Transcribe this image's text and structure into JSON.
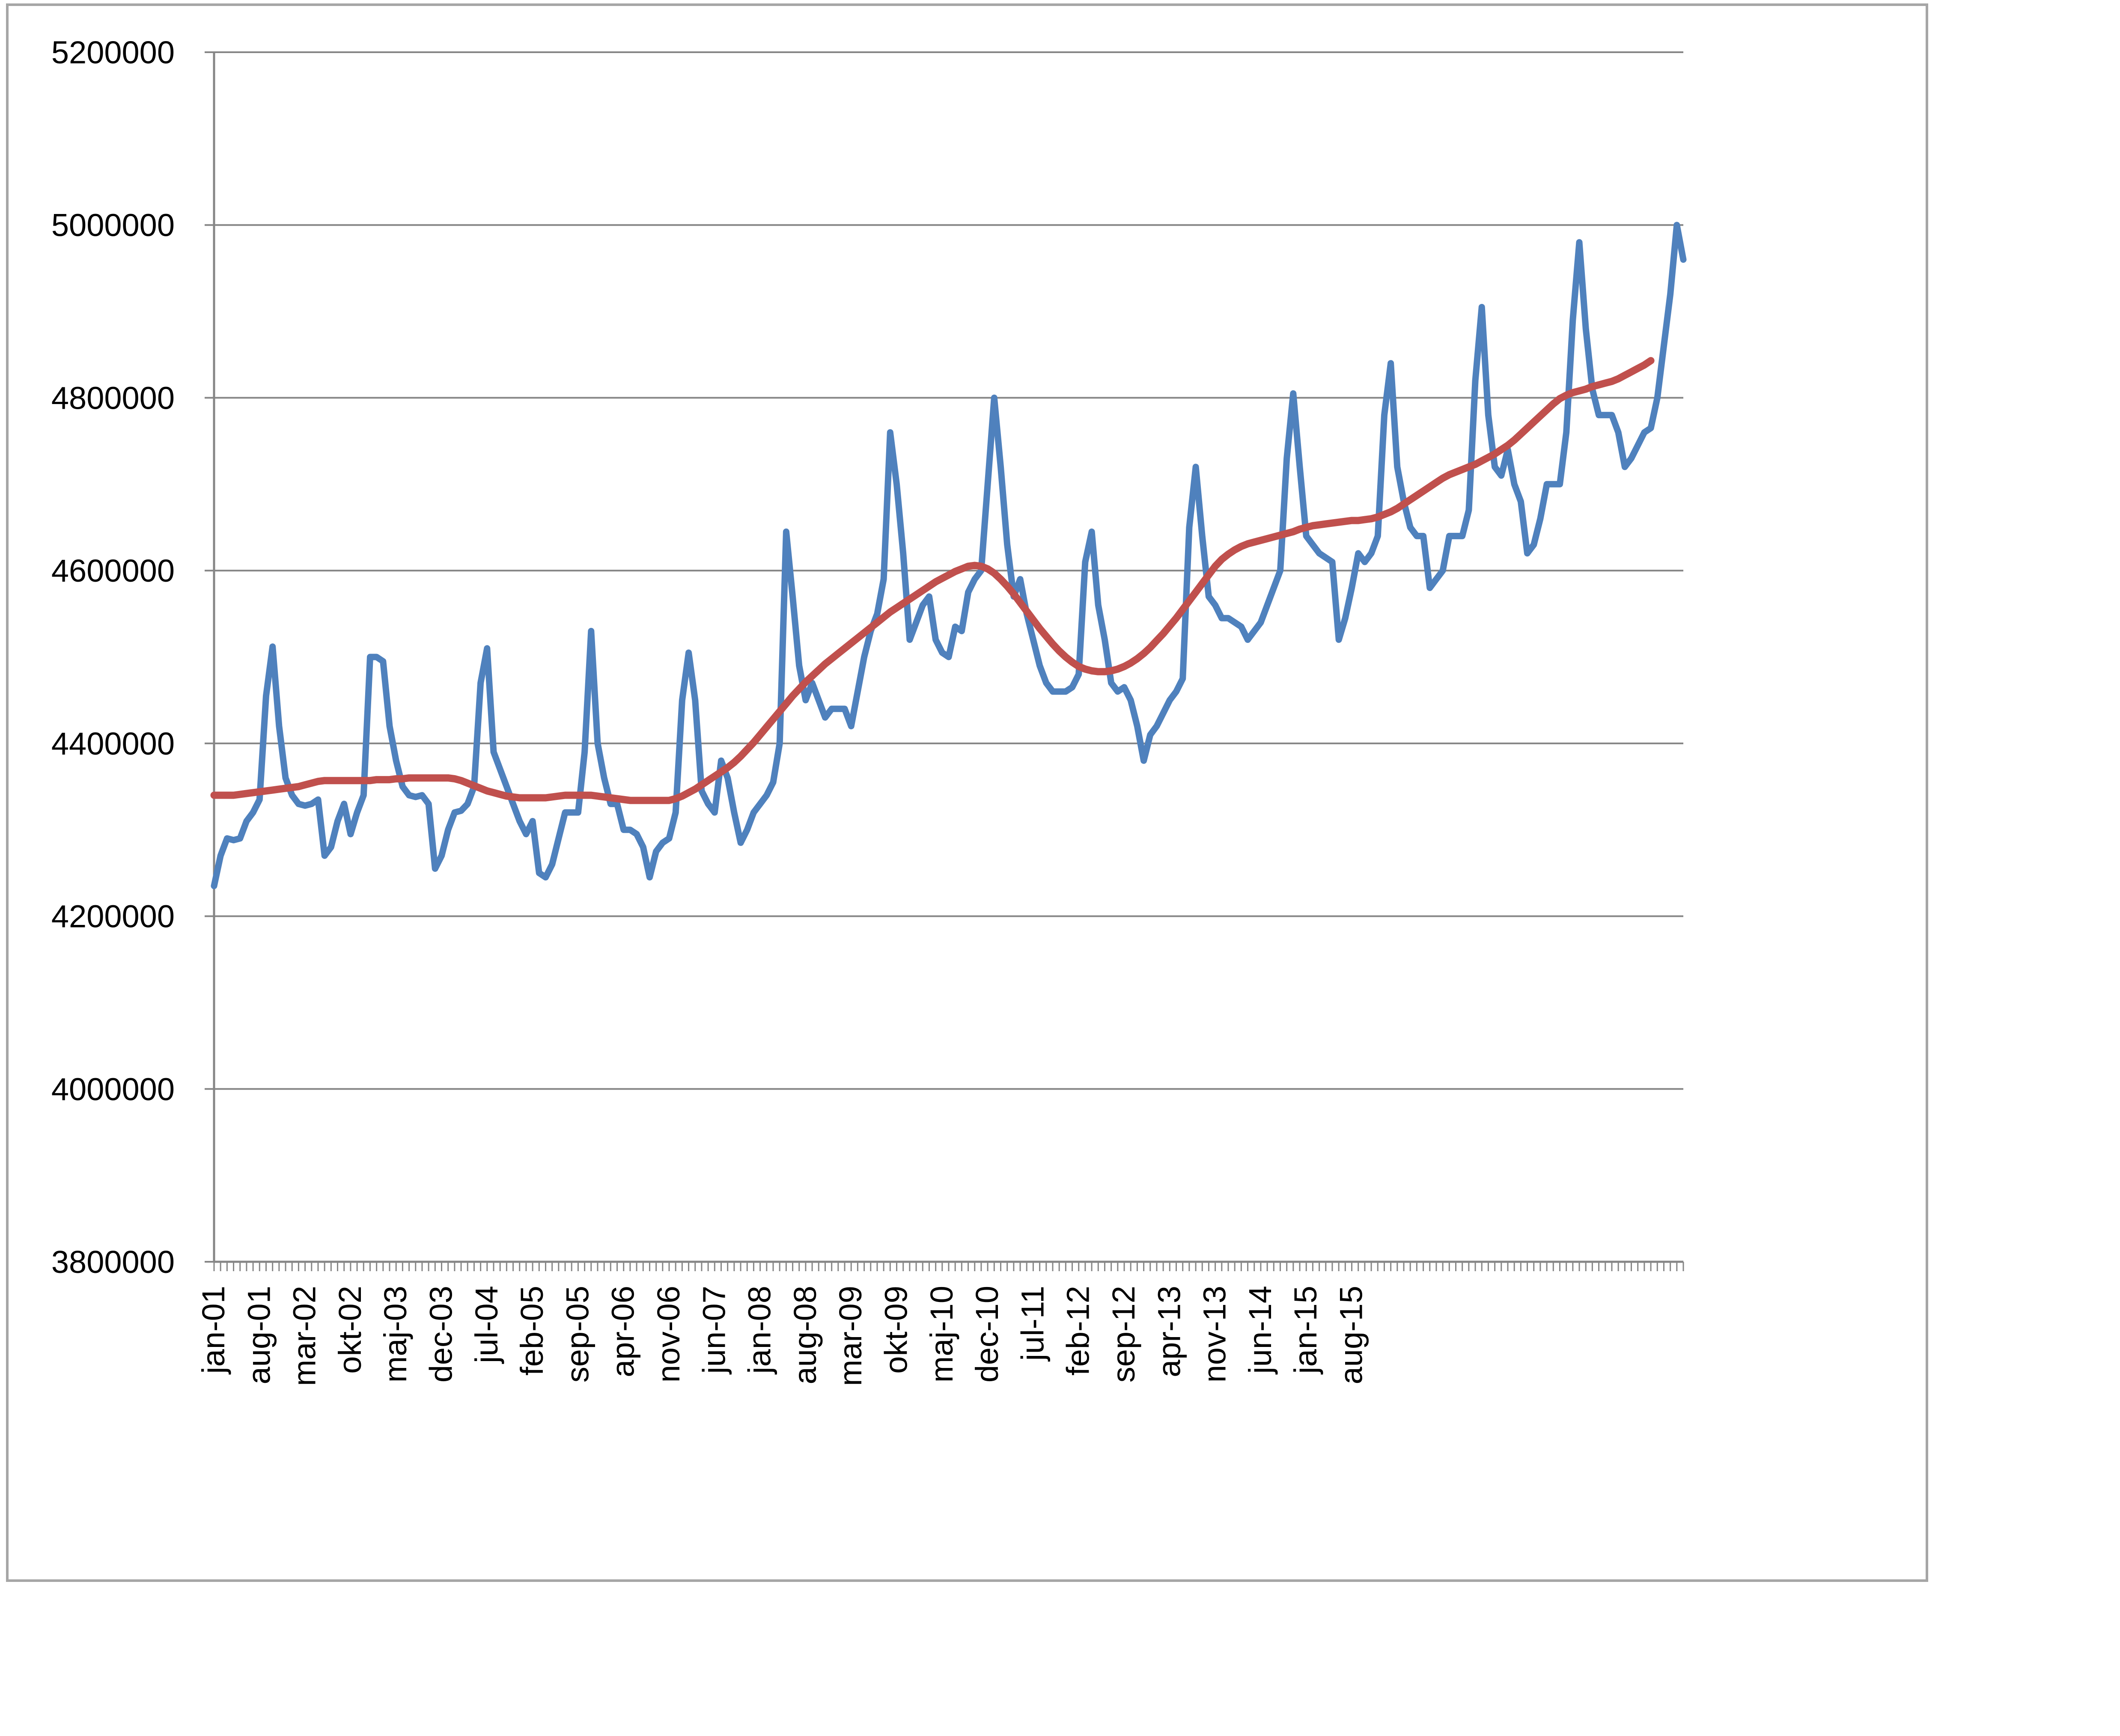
{
  "chart_data": {
    "type": "line",
    "title": "",
    "xlabel": "",
    "ylabel": "",
    "ylim": [
      3800000,
      5200000
    ],
    "yticks": [
      3800000,
      4000000,
      4200000,
      4400000,
      4600000,
      4800000,
      5000000,
      5200000
    ],
    "ytick_labels": [
      "3800000",
      "4000000",
      "4200000",
      "4400000",
      "4600000",
      "4800000",
      "5000000",
      "5200000"
    ],
    "x_start": "jan-01",
    "x_end": "aug-15",
    "xtick_labels": [
      "jan-01",
      "aug-01",
      "mar-02",
      "okt-02",
      "maj-03",
      "dec-03",
      "jul-04",
      "feb-05",
      "sep-05",
      "apr-06",
      "nov-06",
      "jun-07",
      "jan-08",
      "aug-08",
      "mar-09",
      "okt-09",
      "maj-10",
      "dec-10",
      "jul-11",
      "feb-12",
      "sep-12",
      "apr-13",
      "nov-13",
      "jun-14",
      "jan-15",
      "aug-15"
    ],
    "grid": true,
    "legend": "none",
    "series": [
      {
        "color": "#4f81bd",
        "values": [
          4235000,
          4270000,
          4290000,
          4288000,
          4290000,
          4310000,
          4320000,
          4335000,
          4455000,
          4512000,
          4420000,
          4360000,
          4340000,
          4330000,
          4328000,
          4330000,
          4335000,
          4270000,
          4280000,
          4310000,
          4330000,
          4295000,
          4320000,
          4340000,
          4500000,
          4500000,
          4495000,
          4420000,
          4380000,
          4350000,
          4340000,
          4338000,
          4340000,
          4330000,
          4255000,
          4270000,
          4300000,
          4320000,
          4322000,
          4330000,
          4350000,
          4470000,
          4510000,
          4390000,
          4370000,
          4350000,
          4330000,
          4310000,
          4295000,
          4310000,
          4250000,
          4245000,
          4260000,
          4290000,
          4320000,
          4320000,
          4320000,
          4390000,
          4530000,
          4400000,
          4360000,
          4330000,
          4330000,
          4300000,
          4300000,
          4295000,
          4280000,
          4245000,
          4275000,
          4285000,
          4290000,
          4320000,
          4450000,
          4505000,
          4450000,
          4345000,
          4330000,
          4320000,
          4380000,
          4360000,
          4320000,
          4285000,
          4300000,
          4320000,
          4330000,
          4340000,
          4355000,
          4400000,
          4645000,
          4570000,
          4490000,
          4450000,
          4470000,
          4450000,
          4430000,
          4440000,
          4440000,
          4440000,
          4420000,
          4460000,
          4500000,
          4530000,
          4550000,
          4590000,
          4760000,
          4700000,
          4620000,
          4520000,
          4540000,
          4560000,
          4570000,
          4520000,
          4505000,
          4500000,
          4535000,
          4530000,
          4575000,
          4590000,
          4600000,
          4700000,
          4800000,
          4720000,
          4630000,
          4570000,
          4590000,
          4550000,
          4520000,
          4490000,
          4470000,
          4460000,
          4460000,
          4460000,
          4465000,
          4480000,
          4610000,
          4645000,
          4560000,
          4520000,
          4470000,
          4460000,
          4465000,
          4450000,
          4420000,
          4380000,
          4410000,
          4420000,
          4435000,
          4450000,
          4460000,
          4475000,
          4650000,
          4720000,
          4640000,
          4570000,
          4560000,
          4545000,
          4545000,
          4540000,
          4535000,
          4520000,
          4530000,
          4540000,
          4560000,
          4580000,
          4600000,
          4730000,
          4805000,
          4720000,
          4640000,
          4630000,
          4620000,
          4615000,
          4610000,
          4520000,
          4545000,
          4580000,
          4620000,
          4610000,
          4620000,
          4640000,
          4780000,
          4840000,
          4720000,
          4680000,
          4650000,
          4640000,
          4640000,
          4580000,
          4590000,
          4600000,
          4640000,
          4640000,
          4640000,
          4670000,
          4820000,
          4905000,
          4780000,
          4720000,
          4710000,
          4740000,
          4700000,
          4680000,
          4620000,
          4630000,
          4660000,
          4700000,
          4700000,
          4700000,
          4760000,
          4890000,
          4980000,
          4880000,
          4810000,
          4780000,
          4780000,
          4780000,
          4760000,
          4720000,
          4730000,
          4745000,
          4760000,
          4765000,
          4800000,
          4860000,
          4920000,
          5000000,
          4960000
        ]
      },
      {
        "color": "#c0504d",
        "values": [
          4340000,
          4340000,
          4340000,
          4340000,
          4341000,
          4342000,
          4343000,
          4344000,
          4345000,
          4346000,
          4347000,
          4348000,
          4349000,
          4350000,
          4352000,
          4354000,
          4356000,
          4357000,
          4357000,
          4357000,
          4357000,
          4357000,
          4357000,
          4357000,
          4357000,
          4358000,
          4358000,
          4358000,
          4359000,
          4359000,
          4360000,
          4360000,
          4360000,
          4360000,
          4360000,
          4360000,
          4360000,
          4359000,
          4357000,
          4354000,
          4351000,
          4348000,
          4345000,
          4343000,
          4341000,
          4339000,
          4338000,
          4337000,
          4337000,
          4337000,
          4337000,
          4337000,
          4338000,
          4339000,
          4340000,
          4340000,
          4340000,
          4340000,
          4340000,
          4339000,
          4338000,
          4337000,
          4336000,
          4335000,
          4334000,
          4334000,
          4334000,
          4334000,
          4334000,
          4334000,
          4334000,
          4336000,
          4339000,
          4343000,
          4347000,
          4352000,
          4357000,
          4362000,
          4367000,
          4372000,
          4378000,
          4385000,
          4393000,
          4401000,
          4410000,
          4419000,
          4428000,
          4437000,
          4446000,
          4455000,
          4463000,
          4471000,
          4478000,
          4485000,
          4492000,
          4498000,
          4504000,
          4510000,
          4516000,
          4522000,
          4528000,
          4534000,
          4540000,
          4546000,
          4552000,
          4557000,
          4562000,
          4567000,
          4572000,
          4577000,
          4582000,
          4587000,
          4591000,
          4595000,
          4599000,
          4602000,
          4605000,
          4606000,
          4605000,
          4602000,
          4597000,
          4590000,
          4582000,
          4573000,
          4563000,
          4553000,
          4543000,
          4533000,
          4524000,
          4515000,
          4507000,
          4500000,
          4494000,
          4489000,
          4486000,
          4484000,
          4483000,
          4483000,
          4484000,
          4486000,
          4489000,
          4493000,
          4498000,
          4504000,
          4511000,
          4519000,
          4527000,
          4536000,
          4545000,
          4555000,
          4565000,
          4575000,
          4585000,
          4595000,
          4605000,
          4613000,
          4619000,
          4624000,
          4628000,
          4631000,
          4633000,
          4635000,
          4637000,
          4639000,
          4641000,
          4643000,
          4645000,
          4648000,
          4650000,
          4652000,
          4653000,
          4654000,
          4655000,
          4656000,
          4657000,
          4658000,
          4658000,
          4659000,
          4660000,
          4662000,
          4665000,
          4668000,
          4672000,
          4677000,
          4682000,
          4687000,
          4692000,
          4697000,
          4702000,
          4707000,
          4711000,
          4714000,
          4717000,
          4720000,
          4723000,
          4727000,
          4731000,
          4735000,
          4740000,
          4745000,
          4751000,
          4758000,
          4765000,
          4772000,
          4779000,
          4786000,
          4793000,
          4799000,
          4803000,
          4806000,
          4808000,
          4810000,
          4813000,
          4815000,
          4817000,
          4819000,
          4822000,
          4826000,
          4830000,
          4834000,
          4838000,
          4843000
        ]
      }
    ]
  }
}
